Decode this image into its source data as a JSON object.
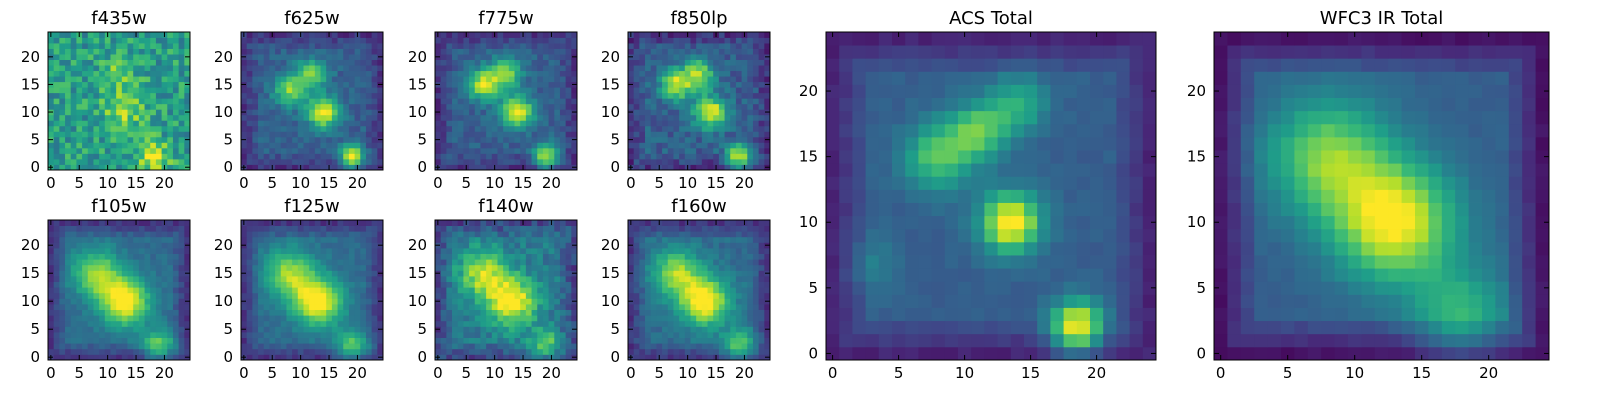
{
  "chart_data": {
    "type": "heatmap",
    "colormap": "viridis",
    "grid_size": 25,
    "panels": [
      {
        "id": "f435w",
        "title": "f435w",
        "xticks": [
          0,
          5,
          10,
          15,
          20
        ],
        "yticks": [
          0,
          5,
          10,
          15,
          20
        ],
        "xlim": [
          -0.5,
          24.5
        ],
        "ylim": [
          -0.5,
          24.5
        ],
        "blobs": [
          [
            13,
            11,
            2.5,
            0.35
          ],
          [
            18,
            2,
            2,
            0.4
          ],
          [
            12,
            18,
            2,
            0.2
          ]
        ],
        "base": 0.55,
        "noise": 0.35,
        "edge": 0.0
      },
      {
        "id": "f625w",
        "title": "f625w",
        "xticks": [
          0,
          5,
          10,
          15,
          20
        ],
        "yticks": [
          0,
          5,
          10,
          15,
          20
        ],
        "xlim": [
          -0.5,
          24.5
        ],
        "ylim": [
          -0.5,
          24.5
        ],
        "blobs": [
          [
            8,
            14,
            2,
            0.5
          ],
          [
            12,
            17,
            2,
            0.45
          ],
          [
            14,
            10,
            2,
            0.7
          ],
          [
            19,
            2,
            1.5,
            0.7
          ]
        ],
        "base": 0.3,
        "noise": 0.15,
        "edge": 0.15
      },
      {
        "id": "f775w",
        "title": "f775w",
        "xticks": [
          0,
          5,
          10,
          15,
          20
        ],
        "yticks": [
          0,
          5,
          10,
          15,
          20
        ],
        "xlim": [
          -0.5,
          24.5
        ],
        "ylim": [
          -0.5,
          24.5
        ],
        "blobs": [
          [
            8,
            15,
            2,
            0.6
          ],
          [
            12,
            17,
            2,
            0.5
          ],
          [
            14,
            10,
            2,
            0.7
          ],
          [
            19,
            2,
            1.5,
            0.65
          ]
        ],
        "base": 0.3,
        "noise": 0.15,
        "edge": 0.15
      },
      {
        "id": "f850lp",
        "title": "f850lp",
        "xticks": [
          0,
          5,
          10,
          15,
          20
        ],
        "yticks": [
          0,
          5,
          10,
          15,
          20
        ],
        "xlim": [
          -0.5,
          24.5
        ],
        "ylim": [
          -0.5,
          24.5
        ],
        "blobs": [
          [
            8,
            15,
            2,
            0.6
          ],
          [
            12,
            17,
            2,
            0.5
          ],
          [
            14,
            10,
            2,
            0.7
          ],
          [
            19,
            2,
            1.5,
            0.7
          ]
        ],
        "base": 0.3,
        "noise": 0.2,
        "edge": 0.15
      },
      {
        "id": "f105w",
        "title": "f105w",
        "xticks": [
          0,
          5,
          10,
          15,
          20
        ],
        "yticks": [
          0,
          5,
          10,
          15,
          20
        ],
        "xlim": [
          -0.5,
          24.5
        ],
        "ylim": [
          -0.5,
          24.5
        ],
        "blobs": [
          [
            8,
            15,
            3,
            0.5
          ],
          [
            13,
            10,
            3,
            0.7
          ],
          [
            19,
            2,
            2,
            0.45
          ]
        ],
        "base": 0.35,
        "noise": 0.1,
        "edge": 0.2
      },
      {
        "id": "f125w",
        "title": "f125w",
        "xticks": [
          0,
          5,
          10,
          15,
          20
        ],
        "yticks": [
          0,
          5,
          10,
          15,
          20
        ],
        "xlim": [
          -0.5,
          24.5
        ],
        "ylim": [
          -0.5,
          24.5
        ],
        "blobs": [
          [
            8,
            15,
            3,
            0.5
          ],
          [
            13,
            10,
            3,
            0.7
          ],
          [
            19,
            2,
            2,
            0.45
          ]
        ],
        "base": 0.35,
        "noise": 0.1,
        "edge": 0.2
      },
      {
        "id": "f140w",
        "title": "f140w",
        "xticks": [
          0,
          5,
          10,
          15,
          20
        ],
        "yticks": [
          0,
          5,
          10,
          15,
          20
        ],
        "xlim": [
          -0.5,
          24.5
        ],
        "ylim": [
          -0.5,
          24.5
        ],
        "blobs": [
          [
            8,
            15,
            3,
            0.5
          ],
          [
            13,
            10,
            3,
            0.65
          ],
          [
            19,
            2,
            2,
            0.4
          ]
        ],
        "base": 0.4,
        "noise": 0.2,
        "edge": 0.2
      },
      {
        "id": "f160w",
        "title": "f160w",
        "xticks": [
          0,
          5,
          10,
          15,
          20
        ],
        "yticks": [
          0,
          5,
          10,
          15,
          20
        ],
        "xlim": [
          -0.5,
          24.5
        ],
        "ylim": [
          -0.5,
          24.5
        ],
        "blobs": [
          [
            8,
            15,
            3,
            0.5
          ],
          [
            13,
            10,
            3,
            0.7
          ],
          [
            19,
            2,
            2,
            0.45
          ]
        ],
        "base": 0.35,
        "noise": 0.12,
        "edge": 0.2
      },
      {
        "id": "acs-total",
        "title": "ACS Total",
        "xticks": [
          0,
          5,
          10,
          15,
          20
        ],
        "yticks": [
          0,
          5,
          10,
          15,
          20
        ],
        "xlim": [
          -0.5,
          24.5
        ],
        "ylim": [
          -0.5,
          24.5
        ],
        "blobs": [
          [
            8,
            15,
            1.8,
            0.45
          ],
          [
            11,
            17,
            1.5,
            0.45
          ],
          [
            14,
            19,
            1.5,
            0.35
          ],
          [
            13.5,
            10,
            1.6,
            0.75
          ],
          [
            18.5,
            2,
            1.4,
            0.75
          ],
          [
            3,
            7,
            1.5,
            0.12
          ]
        ],
        "base": 0.3,
        "noise": 0.05,
        "edge": 0.2
      },
      {
        "id": "wfc3-ir-total",
        "title": "WFC3 IR Total",
        "xticks": [
          0,
          5,
          10,
          15,
          20
        ],
        "yticks": [
          0,
          5,
          10,
          15,
          20
        ],
        "xlim": [
          -0.5,
          24.5
        ],
        "ylim": [
          -0.5,
          24.5
        ],
        "blobs": [
          [
            8,
            15,
            3.2,
            0.5
          ],
          [
            13,
            10,
            3.2,
            0.7
          ],
          [
            18,
            3,
            2.5,
            0.35
          ]
        ],
        "base": 0.3,
        "noise": 0.04,
        "edge": 0.25
      }
    ]
  }
}
